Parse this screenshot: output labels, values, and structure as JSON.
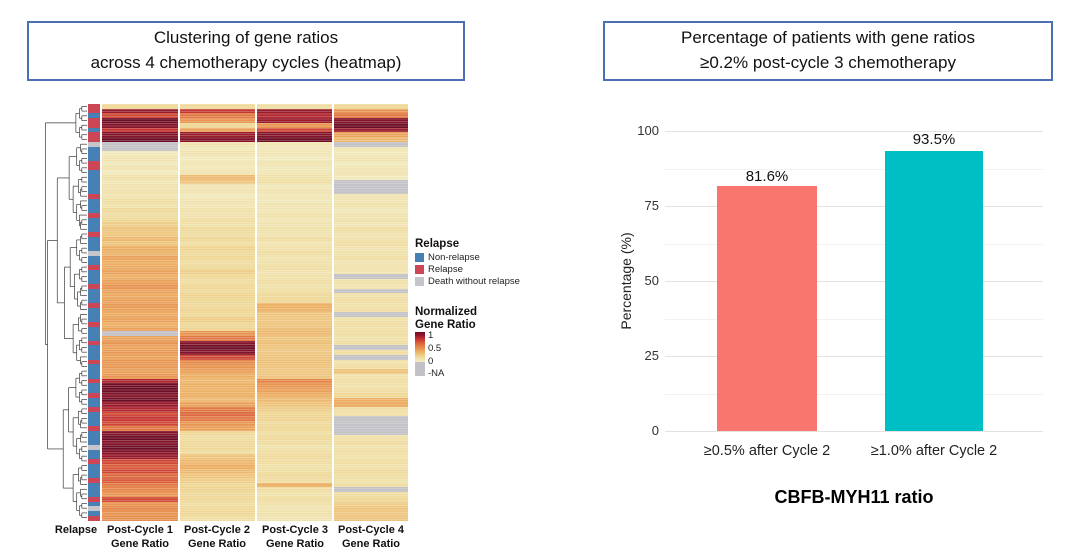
{
  "style": {
    "title_border_color": "#4a6fb5",
    "background": "#ffffff",
    "gridline_major": "#e3e3e3",
    "gridline_minor": "#f1f1f1",
    "dendrogram_color": "#3a3a3a"
  },
  "left": {
    "title_line1": "Clustering of gene ratios",
    "title_line2": "across 4 chemotherapy cycles (heatmap)",
    "axis": {
      "annotation_label": "Relapse",
      "col_labels": [
        {
          "line1": "Post-Cycle 1",
          "line2": "Gene Ratio"
        },
        {
          "line1": "Post-Cycle 2",
          "line2": "Gene Ratio"
        },
        {
          "line1": "Post-Cycle 3",
          "line2": "Gene Ratio"
        },
        {
          "line1": "Post-Cycle 4",
          "line2": "Gene Ratio"
        }
      ]
    },
    "legend": {
      "relapse_title": "Relapse",
      "relapse_items": [
        {
          "label": "Non-relapse",
          "color": "#4780B4"
        },
        {
          "label": "Relapse",
          "color": "#CC4655"
        },
        {
          "label": "Death without relapse",
          "color": "#C6C6CA"
        }
      ],
      "scale_title_line1": "Normalized",
      "scale_title_line2": "Gene Ratio",
      "scale_ticks": [
        "1",
        "0.5",
        "0"
      ],
      "na_label": "-NA",
      "na_color": "#C2C2C6"
    }
  },
  "right": {
    "title_line1": "Percentage of patients with gene ratios",
    "title_line2": "≥0.2% post-cycle 3 chemotherapy"
  },
  "chart_data": [
    {
      "type": "heatmap",
      "title": "Clustering of gene ratios across 4 chemotherapy cycles (heatmap)",
      "columns": [
        "Post-Cycle 1 Gene Ratio",
        "Post-Cycle 2 Gene Ratio",
        "Post-Cycle 3 Gene Ratio",
        "Post-Cycle 4 Gene Ratio"
      ],
      "row_annotation": {
        "label": "Relapse",
        "classes": {
          "N": "Non-relapse",
          "R": "Relapse",
          "D": "Death without relapse"
        },
        "colors": {
          "N": "#4780B4",
          "R": "#CC4655",
          "D": "#C6C6CA"
        }
      },
      "colorscale": {
        "label": "Normalized Gene Ratio",
        "ticks": [
          1,
          0.5,
          0
        ],
        "na_label": "-NA",
        "na_color": "#C2C2C6",
        "stops": [
          [
            0,
            "#F2EFC8"
          ],
          [
            0.2,
            "#EFD795"
          ],
          [
            0.4,
            "#ECAE63"
          ],
          [
            0.55,
            "#E58748"
          ],
          [
            0.7,
            "#D95B3A"
          ],
          [
            0.82,
            "#C02E31"
          ],
          [
            0.92,
            "#8E162B"
          ],
          [
            1,
            "#6E0D26"
          ]
        ]
      },
      "rows": [
        {
          "r": "R",
          "v": [
            0.2,
            0.18,
            0.15,
            0.2
          ]
        },
        {
          "r": "R",
          "v": [
            0.9,
            0.8,
            0.9,
            0.5
          ]
        },
        {
          "r": "N",
          "v": [
            0.75,
            0.6,
            0.85,
            0.6
          ]
        },
        {
          "r": "R",
          "v": [
            1,
            0.5,
            0.9,
            0.95
          ]
        },
        {
          "r": "R",
          "v": [
            0.95,
            0.2,
            0.5,
            1
          ]
        },
        {
          "r": "N",
          "v": [
            0.8,
            0.45,
            0.75,
            0.9
          ]
        },
        {
          "r": "R",
          "v": [
            0.95,
            0.9,
            0.95,
            0.45
          ]
        },
        {
          "r": "R",
          "v": [
            1,
            0.95,
            1,
            0.35
          ]
        },
        {
          "r": "D",
          "v": [
            null,
            0.1,
            0.08,
            null
          ]
        },
        {
          "r": "N",
          "v": [
            null,
            0.06,
            0.06,
            0.08
          ]
        },
        {
          "r": "N",
          "v": [
            0.05,
            0.1,
            0.08,
            0.06
          ]
        },
        {
          "r": "N",
          "v": [
            0.1,
            0.05,
            0.05,
            0.1
          ]
        },
        {
          "r": "R",
          "v": [
            0.06,
            0.08,
            0.1,
            0.05
          ]
        },
        {
          "r": "R",
          "v": [
            0.1,
            0.06,
            0.06,
            0.08
          ]
        },
        {
          "r": "N",
          "v": [
            0.05,
            0.1,
            0.08,
            0.1
          ]
        },
        {
          "r": "N",
          "v": [
            0.12,
            0.35,
            0.12,
            0.06
          ]
        },
        {
          "r": "N",
          "v": [
            0.08,
            0.3,
            0.15,
            null
          ]
        },
        {
          "r": "N",
          "v": [
            0.1,
            0.08,
            0.06,
            null
          ]
        },
        {
          "r": "N",
          "v": [
            0.12,
            0.1,
            0.1,
            null
          ]
        },
        {
          "r": "R",
          "v": [
            0.1,
            0.06,
            0.08,
            0.1
          ]
        },
        {
          "r": "N",
          "v": [
            0.15,
            0.1,
            0.06,
            0.08
          ]
        },
        {
          "r": "N",
          "v": [
            0.12,
            0.08,
            0.1,
            0.12
          ]
        },
        {
          "r": "N",
          "v": [
            0.18,
            0.12,
            0.08,
            0.06
          ]
        },
        {
          "r": "R",
          "v": [
            0.15,
            0.1,
            0.12,
            0.1
          ]
        },
        {
          "r": "N",
          "v": [
            0.2,
            0.15,
            0.08,
            0.12
          ]
        },
        {
          "r": "N",
          "v": [
            0.25,
            0.12,
            0.1,
            0.08
          ]
        },
        {
          "r": "N",
          "v": [
            0.3,
            0.18,
            0.12,
            0.15
          ]
        },
        {
          "r": "R",
          "v": [
            0.28,
            0.15,
            0.1,
            0.1
          ]
        },
        {
          "r": "N",
          "v": [
            0.35,
            0.2,
            0.15,
            0.12
          ]
        },
        {
          "r": "N",
          "v": [
            0.3,
            0.15,
            0.1,
            0.15
          ]
        },
        {
          "r": "N",
          "v": [
            0.4,
            0.22,
            0.12,
            0.1
          ]
        },
        {
          "r": "D",
          "v": [
            0.38,
            0.18,
            0.15,
            0.12
          ]
        },
        {
          "r": "N",
          "v": [
            0.45,
            0.2,
            0.1,
            0.15
          ]
        },
        {
          "r": "N",
          "v": [
            0.4,
            0.15,
            0.12,
            0.1
          ]
        },
        {
          "r": "R",
          "v": [
            0.42,
            0.2,
            0.15,
            0.12
          ]
        },
        {
          "r": "N",
          "v": [
            0.45,
            0.25,
            0.1,
            0.1
          ]
        },
        {
          "r": "N",
          "v": [
            0.4,
            0.2,
            0.12,
            null
          ]
        },
        {
          "r": "N",
          "v": [
            0.45,
            0.15,
            0.15,
            0.12
          ]
        },
        {
          "r": "R",
          "v": [
            0.5,
            0.2,
            0.12,
            0.1
          ]
        },
        {
          "r": "N",
          "v": [
            0.45,
            0.18,
            0.15,
            null
          ]
        },
        {
          "r": "N",
          "v": [
            0.42,
            0.22,
            0.18,
            0.12
          ]
        },
        {
          "r": "N",
          "v": [
            0.45,
            0.2,
            0.2,
            0.15
          ]
        },
        {
          "r": "R",
          "v": [
            0.48,
            0.18,
            0.4,
            0.12
          ]
        },
        {
          "r": "N",
          "v": [
            0.45,
            0.22,
            0.38,
            0.15
          ]
        },
        {
          "r": "N",
          "v": [
            0.42,
            0.2,
            0.3,
            null
          ]
        },
        {
          "r": "N",
          "v": [
            0.45,
            0.25,
            0.28,
            0.12
          ]
        },
        {
          "r": "R",
          "v": [
            0.4,
            0.2,
            0.3,
            0.15
          ]
        },
        {
          "r": "N",
          "v": [
            0.45,
            0.22,
            0.32,
            0.12
          ]
        },
        {
          "r": "N",
          "v": [
            null,
            0.5,
            0.35,
            0.15
          ]
        },
        {
          "r": "N",
          "v": [
            0.45,
            0.6,
            0.3,
            0.12
          ]
        },
        {
          "r": "R",
          "v": [
            0.5,
            0.95,
            0.32,
            0.15
          ]
        },
        {
          "r": "N",
          "v": [
            0.45,
            1,
            0.3,
            null
          ]
        },
        {
          "r": "N",
          "v": [
            0.48,
            0.95,
            0.28,
            0.15
          ]
        },
        {
          "r": "N",
          "v": [
            0.45,
            0.75,
            0.3,
            null
          ]
        },
        {
          "r": "R",
          "v": [
            0.5,
            0.55,
            0.32,
            0.12
          ]
        },
        {
          "r": "N",
          "v": [
            0.48,
            0.5,
            0.3,
            0.15
          ]
        },
        {
          "r": "N",
          "v": [
            0.45,
            0.45,
            0.28,
            0.3
          ]
        },
        {
          "r": "N",
          "v": [
            0.5,
            0.4,
            0.3,
            0.12
          ]
        },
        {
          "r": "R",
          "v": [
            0.85,
            0.35,
            0.55,
            0.15
          ]
        },
        {
          "r": "N",
          "v": [
            1,
            0.4,
            0.5,
            0.12
          ]
        },
        {
          "r": "N",
          "v": [
            1,
            0.38,
            0.45,
            0.15
          ]
        },
        {
          "r": "R",
          "v": [
            0.95,
            0.4,
            0.4,
            0.2
          ]
        },
        {
          "r": "N",
          "v": [
            1,
            0.35,
            0.35,
            0.4
          ]
        },
        {
          "r": "N",
          "v": [
            0.9,
            0.45,
            0.3,
            0.42
          ]
        },
        {
          "r": "R",
          "v": [
            0.85,
            0.6,
            0.25,
            0.15
          ]
        },
        {
          "r": "N",
          "v": [
            0.75,
            0.65,
            0.2,
            0.12
          ]
        },
        {
          "r": "N",
          "v": [
            0.8,
            0.6,
            0.22,
            null
          ]
        },
        {
          "r": "N",
          "v": [
            0.75,
            0.5,
            0.18,
            null
          ]
        },
        {
          "r": "R",
          "v": [
            0.6,
            0.45,
            0.2,
            null
          ]
        },
        {
          "r": "N",
          "v": [
            0.95,
            0.2,
            0.15,
            null
          ]
        },
        {
          "r": "N",
          "v": [
            1,
            0.15,
            0.18,
            0.12
          ]
        },
        {
          "r": "N",
          "v": [
            0.95,
            0.18,
            0.15,
            0.15
          ]
        },
        {
          "r": "D",
          "v": [
            1,
            0.2,
            0.12,
            0.12
          ]
        },
        {
          "r": "N",
          "v": [
            0.95,
            0.15,
            0.15,
            0.15
          ]
        },
        {
          "r": "N",
          "v": [
            0.9,
            0.3,
            0.18,
            0.12
          ]
        },
        {
          "r": "R",
          "v": [
            0.75,
            0.35,
            0.15,
            0.15
          ]
        },
        {
          "r": "N",
          "v": [
            0.7,
            0.4,
            0.12,
            0.12
          ]
        },
        {
          "r": "N",
          "v": [
            0.75,
            0.35,
            0.15,
            0.18
          ]
        },
        {
          "r": "N",
          "v": [
            0.65,
            0.3,
            0.18,
            0.15
          ]
        },
        {
          "r": "R",
          "v": [
            0.7,
            0.25,
            0.15,
            0.12
          ]
        },
        {
          "r": "N",
          "v": [
            0.6,
            0.2,
            0.4,
            0.15
          ]
        },
        {
          "r": "N",
          "v": [
            0.55,
            0.22,
            0.15,
            null
          ]
        },
        {
          "r": "N",
          "v": [
            0.5,
            0.18,
            0.12,
            0.15
          ]
        },
        {
          "r": "R",
          "v": [
            0.75,
            0.2,
            0.15,
            0.2
          ]
        },
        {
          "r": "N",
          "v": [
            0.5,
            0.15,
            0.12,
            0.25
          ]
        },
        {
          "r": "D",
          "v": [
            0.55,
            0.18,
            0.1,
            0.3
          ]
        },
        {
          "r": "N",
          "v": [
            0.5,
            0.2,
            0.12,
            0.28
          ]
        },
        {
          "r": "R",
          "v": [
            0.52,
            0.15,
            0.1,
            0.3
          ]
        }
      ]
    },
    {
      "type": "bar",
      "title": "Percentage of patients with gene ratios ≥0.2% post-cycle 3 chemotherapy",
      "categories": [
        "≥0.5% after Cycle 2",
        "≥1.0% after Cycle 2"
      ],
      "values": [
        81.6,
        93.5
      ],
      "value_labels": [
        "81.6%",
        "93.5%"
      ],
      "colors": [
        "#F8766D",
        "#00BFC4"
      ],
      "xlabel": "CBFB-MYH11 ratio",
      "ylabel": "Percentage (%)",
      "ylim": [
        0,
        100
      ],
      "yticks": [
        0,
        25,
        50,
        75,
        100
      ],
      "minor_gridlines": [
        12.5,
        37.5,
        62.5,
        87.5
      ],
      "grid": true,
      "legend": "none"
    }
  ]
}
